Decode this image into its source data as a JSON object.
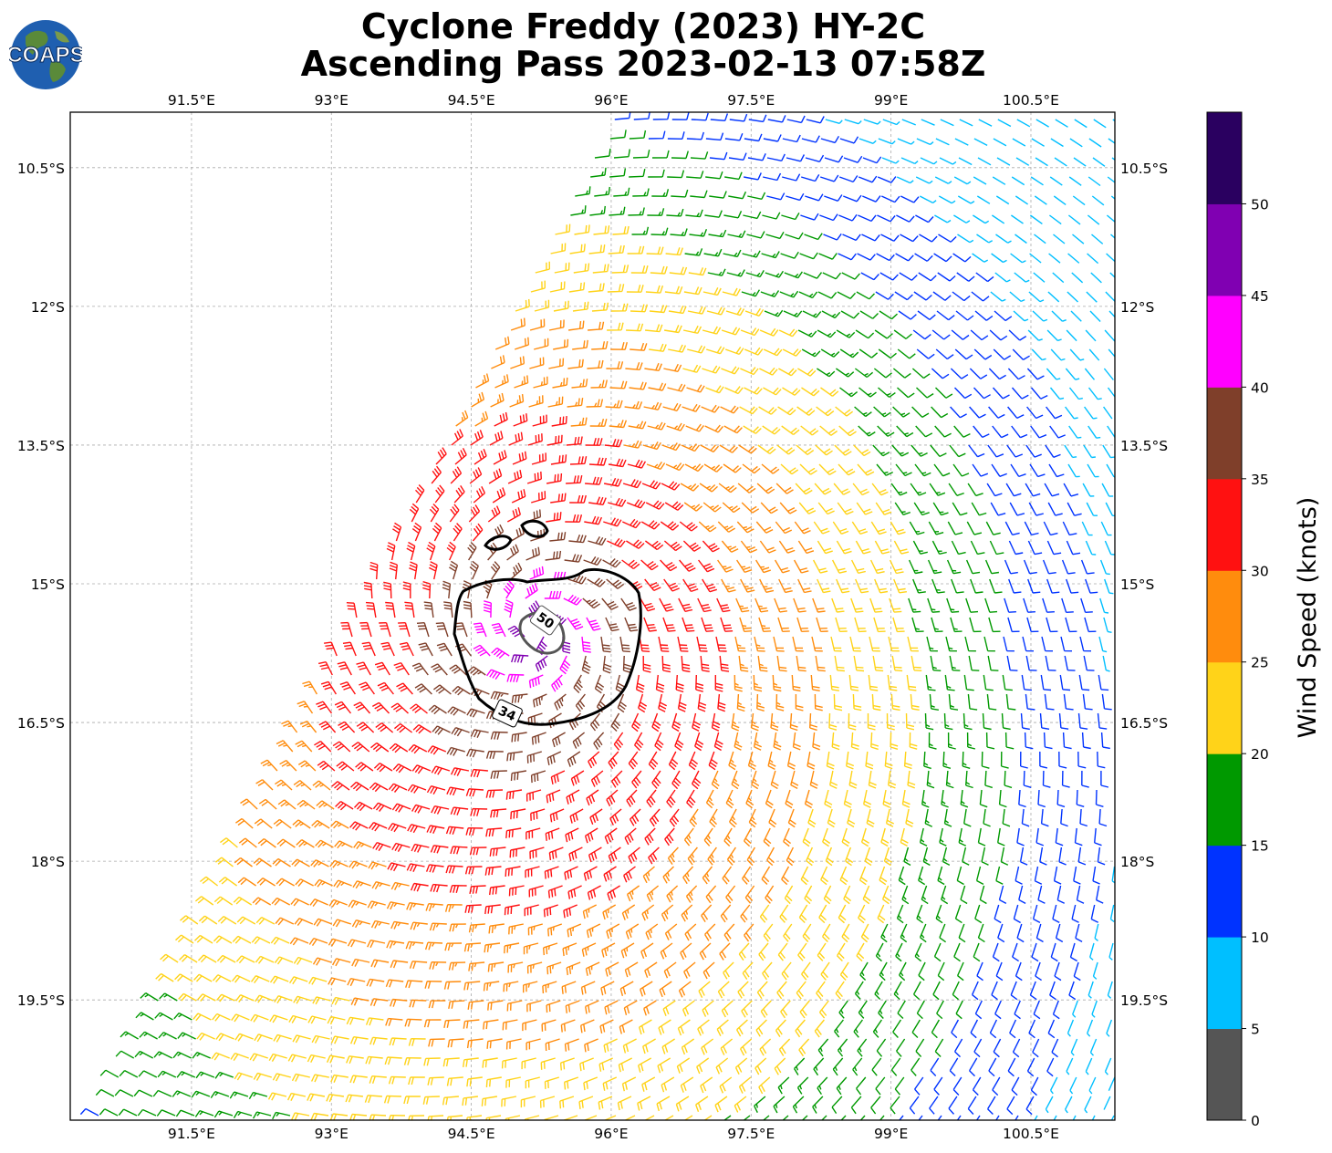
{
  "header": {
    "title_line1": "Cyclone Freddy (2023) HY-2C",
    "title_line2": "Ascending Pass 2023-02-13 07:58Z",
    "logo_text": "COAPS"
  },
  "map": {
    "lon_ticks": [
      "91.5°E",
      "93°E",
      "94.5°E",
      "96°E",
      "97.5°E",
      "99°E",
      "100.5°E"
    ],
    "lon_values": [
      91.5,
      93,
      94.5,
      96,
      97.5,
      99,
      100.5
    ],
    "lat_ticks": [
      "10.5°S",
      "12°S",
      "13.5°S",
      "15°S",
      "16.5°S",
      "18°S",
      "19.5°S"
    ],
    "lat_values": [
      -10.5,
      -12,
      -13.5,
      -15,
      -16.5,
      -18,
      -19.5
    ],
    "lon_range": [
      90.2,
      101.4
    ],
    "lat_range": [
      -20.8,
      -9.9
    ],
    "storm_center": {
      "lon": 95.2,
      "lat": -15.5
    },
    "swath_west_edge": [
      [
        96.0,
        -9.9
      ],
      [
        90.4,
        -20.8
      ]
    ],
    "contours": [
      {
        "label": "34",
        "color": "#000000"
      },
      {
        "label": "50",
        "color": "#555555"
      }
    ]
  },
  "colorbar": {
    "title": "Wind Speed (knots)",
    "tick_labels": [
      "0",
      "5",
      "10",
      "15",
      "20",
      "25",
      "30",
      "35",
      "40",
      "45",
      "50"
    ],
    "colors": [
      "#555555",
      "#00bfff",
      "#0033ff",
      "#009900",
      "#ffd319",
      "#ff8c0d",
      "#ff1111",
      "#7f3f2a",
      "#ff00ff",
      "#8000b2",
      "#2a0060"
    ]
  }
}
